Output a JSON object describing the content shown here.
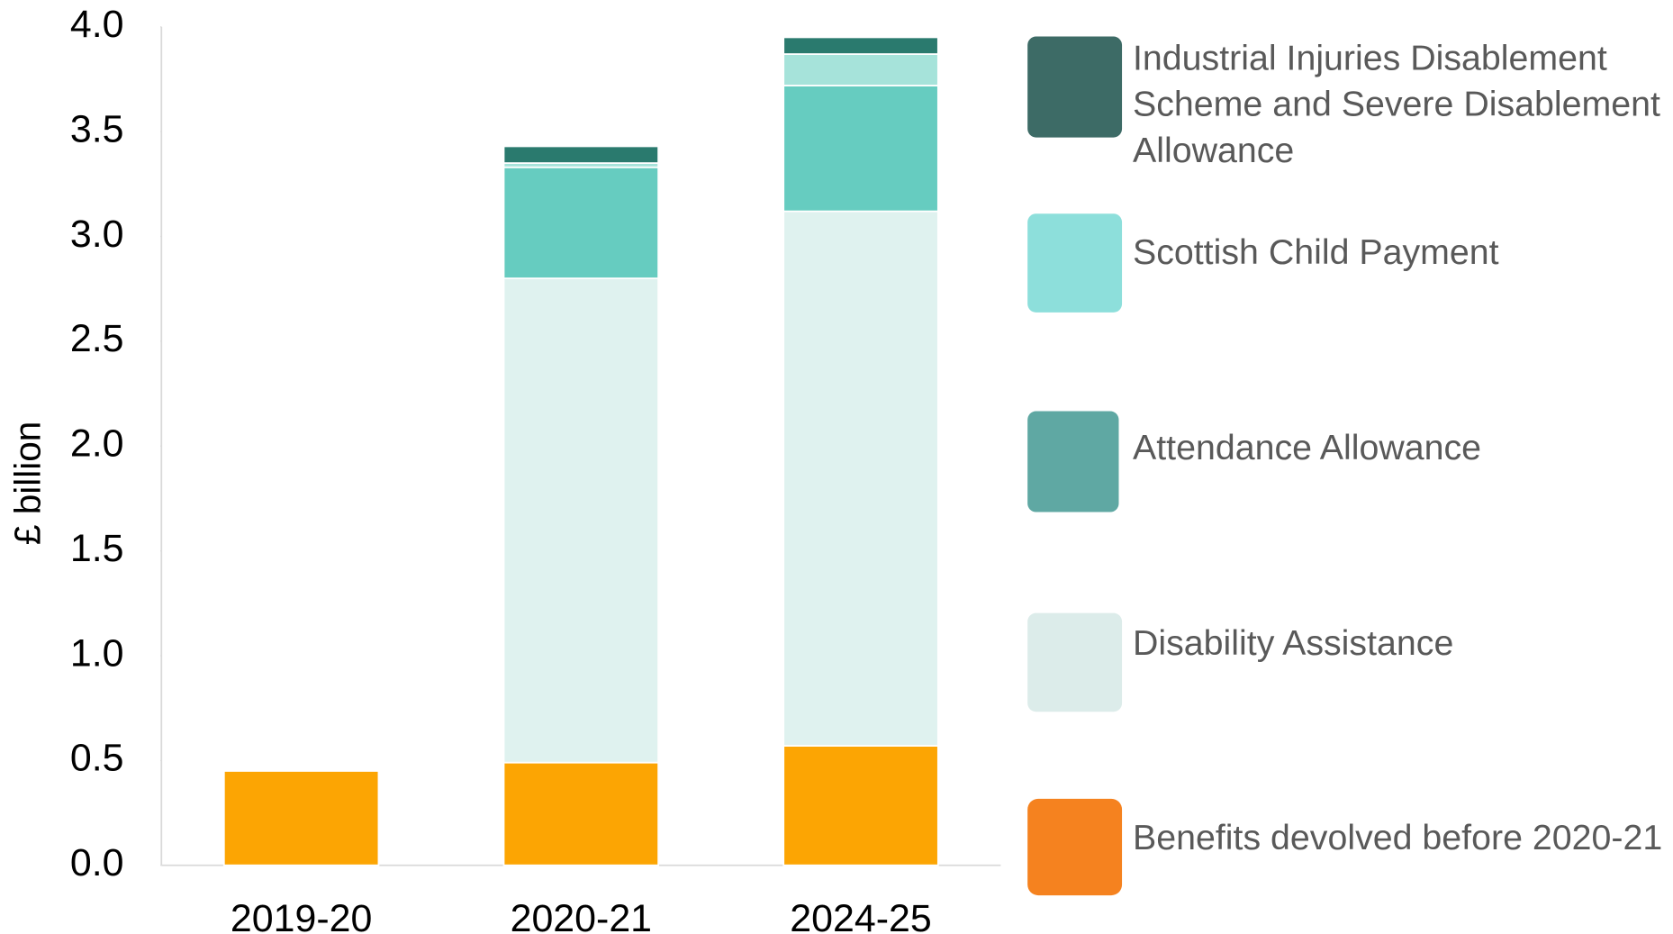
{
  "chart_data": {
    "type": "bar",
    "stacked": true,
    "ylabel": "£ billion",
    "categories": [
      "2019-20",
      "2020-21",
      "2024-25"
    ],
    "series": [
      {
        "name": "Benefits devolved before 2020-21",
        "color": "#fca503",
        "values": [
          0.45,
          0.49,
          0.57
        ]
      },
      {
        "name": "Disability Assistance",
        "color": "#dff2ef",
        "values": [
          null,
          2.31,
          2.55
        ]
      },
      {
        "name": "Attendance Allowance",
        "color": "#66ccc0",
        "values": [
          null,
          0.53,
          0.6
        ]
      },
      {
        "name": "Scottish Child Payment",
        "color": "#a6e3da",
        "values": [
          null,
          0.02,
          0.15
        ]
      },
      {
        "name": "Industrial Injuries Disablement Scheme and Severe Disablement Allowance",
        "color": "#2a7a6e",
        "values": [
          null,
          0.08,
          0.08
        ]
      }
    ],
    "ylim": [
      0,
      4
    ],
    "yticks": [
      {
        "value": 0,
        "label": "0.0"
      },
      {
        "value": 0.5,
        "label": "0.5"
      },
      {
        "value": 1,
        "label": "1.0"
      },
      {
        "value": 1.5,
        "label": "1.5"
      },
      {
        "value": 2,
        "label": "2.0"
      },
      {
        "value": 2.5,
        "label": "2.5"
      },
      {
        "value": 3,
        "label": "3.0"
      },
      {
        "value": 3.5,
        "label": "3.5"
      },
      {
        "value": 4,
        "label": "4.0"
      }
    ],
    "legend": "right"
  }
}
